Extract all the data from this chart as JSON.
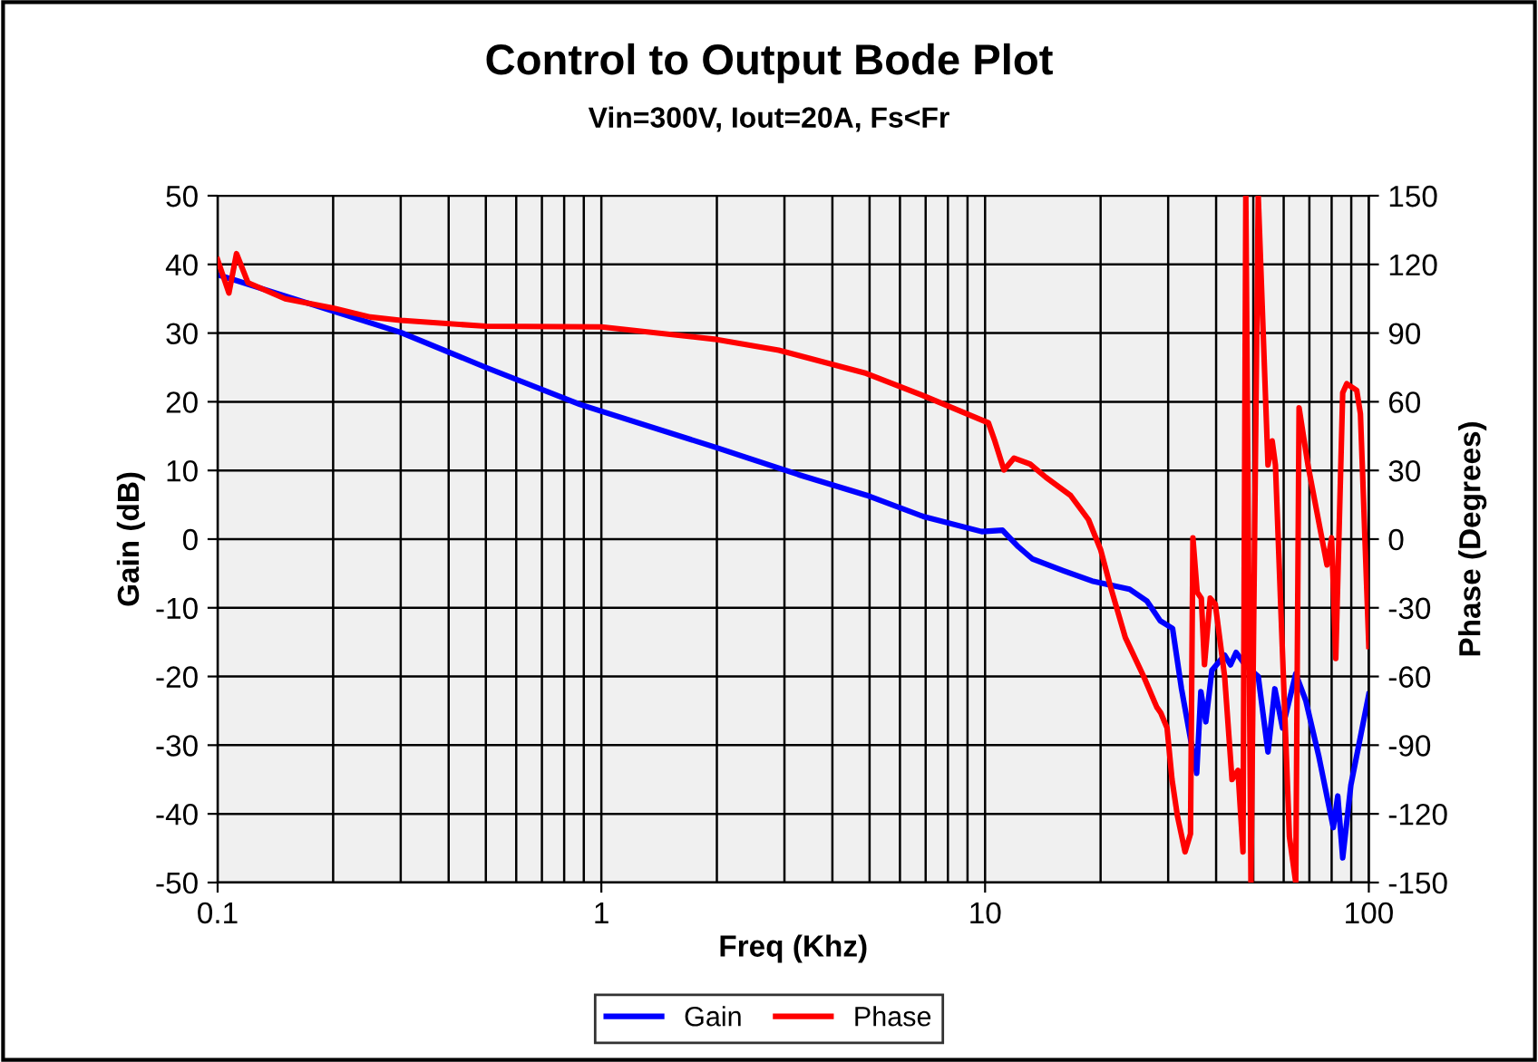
{
  "chart_data": {
    "type": "line",
    "title": "Control to Output Bode Plot",
    "subtitle": "Vin=300V, Iout=20A, Fs<Fr",
    "xlabel": "Freq (Khz)",
    "ylabel": "Gain (dB)",
    "y2label": "Phase (Degrees)",
    "log": "x",
    "xlim": [
      0.1,
      100
    ],
    "xticks": [
      0.1,
      1,
      10,
      100
    ],
    "ylim": [
      -50,
      50
    ],
    "yticks": [
      -50,
      -40,
      -30,
      -20,
      -10,
      0,
      10,
      20,
      30,
      40,
      50
    ],
    "y2lim": [
      -150,
      150
    ],
    "y2ticks": [
      -150,
      -120,
      -90,
      -60,
      -30,
      0,
      30,
      60,
      90,
      120,
      150
    ],
    "grid": true,
    "legend": "bottom",
    "marker": "none",
    "line_style": "solid",
    "series": [
      {
        "name": "Gain",
        "color": "#0000ff",
        "x": [
          0.1,
          0.13,
          0.2,
          0.3,
          0.5,
          0.88,
          2,
          3.26,
          4.9,
          6.9,
          9.8,
          11.1,
          12.2,
          13.3,
          16,
          19,
          23.8,
          26.4,
          28.6,
          30.8,
          32.5,
          35.6,
          36.5,
          37.6,
          39,
          42.1,
          43.6,
          45.1,
          47.6,
          51.5,
          54.6,
          56.9,
          59.6,
          64.5,
          68.5,
          74,
          80.8,
          83,
          85.5,
          89.8,
          100
        ],
        "values": [
          38.5,
          36.5,
          33.2,
          30.1,
          25,
          19.6,
          13.3,
          9.4,
          6.4,
          3.3,
          1.1,
          1.3,
          -1.1,
          -2.9,
          -4.6,
          -6.1,
          -7.3,
          -9,
          -11.9,
          -13,
          -21.8,
          -34.1,
          -22.2,
          -26.6,
          -19.1,
          -16.9,
          -18.3,
          -16.5,
          -18.3,
          -20,
          -31,
          -21.8,
          -27.5,
          -19.6,
          -23.5,
          -31.5,
          -42,
          -37.4,
          -46.4,
          -35.8,
          -22.6
        ]
      },
      {
        "name": "Phase",
        "color": "#ff0000",
        "axis": "y2",
        "x": [
          0.1,
          0.107,
          0.112,
          0.12,
          0.15,
          0.2,
          0.25,
          0.3,
          0.5,
          1,
          2,
          2.9,
          4.9,
          6.9,
          10.2,
          10.6,
          11.2,
          11.9,
          13.1,
          14.4,
          16.7,
          18.6,
          20,
          21.2,
          23.2,
          25.9,
          28,
          28.7,
          29.8,
          30.7,
          31.7,
          33.2,
          34.3,
          34.8,
          35.7,
          36.6,
          37.3,
          38.6,
          39.8,
          42.1,
          44,
          45.6,
          47,
          47.8,
          49.3,
          51.5,
          54.6,
          56,
          57.1,
          62.1,
          64.5,
          65.8,
          69.4,
          77.8,
          80,
          82,
          85.5,
          87.6,
          93,
          95.1,
          100
        ],
        "values": [
          122,
          107.5,
          124.7,
          112,
          105,
          100.9,
          97,
          95.6,
          93,
          92.7,
          87.2,
          82.5,
          72.4,
          62.7,
          50.8,
          42.9,
          30.2,
          35.4,
          32.8,
          27,
          19.1,
          8.5,
          -4.6,
          -20.5,
          -43,
          -60,
          -73.3,
          -75.9,
          -82.5,
          -105,
          -120.8,
          -136.6,
          -128.7,
          0.6,
          -23.2,
          -25.8,
          -54.8,
          -25.8,
          -28.4,
          -60,
          -105,
          -101,
          -136.6,
          150,
          -150,
          150,
          32.4,
          42.9,
          32.4,
          -130,
          -150,
          57.4,
          32.4,
          -11.3,
          0.6,
          -52.1,
          63.9,
          67.9,
          65,
          54.7,
          -46.9
        ]
      }
    ]
  }
}
